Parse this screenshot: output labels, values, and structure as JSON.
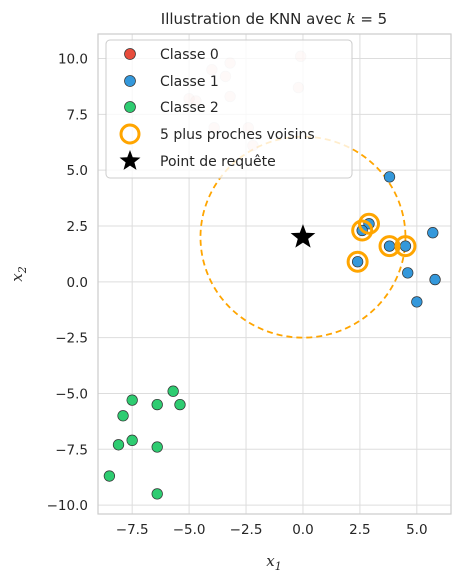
{
  "chart_data": {
    "type": "scatter",
    "title": "Illustration de KNN avec k = 5",
    "title_prefix": "Illustration de KNN avec ",
    "title_var": "k",
    "title_suffix": " = 5",
    "xlabel": "x",
    "xlabel_sub": "1",
    "ylabel": "x",
    "ylabel_sub": "2",
    "xlim": [
      -9.0,
      6.5
    ],
    "ylim": [
      -10.4,
      11.1
    ],
    "xticks": [
      -7.5,
      -5.0,
      -2.5,
      0.0,
      2.5,
      5.0
    ],
    "xtick_labels": [
      "−7.5",
      "−5.0",
      "−2.5",
      "0.0",
      "2.5",
      "5.0"
    ],
    "yticks": [
      -10.0,
      -7.5,
      -5.0,
      -2.5,
      0.0,
      2.5,
      5.0,
      7.5,
      10.0
    ],
    "ytick_labels": [
      "−10.0",
      "−7.5",
      "−5.0",
      "−2.5",
      "0.0",
      "2.5",
      "5.0",
      "7.5",
      "10.0"
    ],
    "grid": true,
    "legend_position": "top-left",
    "series": [
      {
        "name": "Classe 0",
        "color": "#e74c3c",
        "points": [
          [
            -0.1,
            10.1
          ],
          [
            -3.2,
            9.8
          ],
          [
            -4.0,
            9.5
          ],
          [
            -3.4,
            9.2
          ],
          [
            -0.2,
            8.7
          ],
          [
            -3.2,
            8.3
          ],
          [
            -5.0,
            8.2
          ],
          [
            -4.7,
            8.1
          ],
          [
            -2.4,
            6.9
          ],
          [
            -3.9,
            6.9
          ],
          [
            -2.2,
            6.1
          ]
        ]
      },
      {
        "name": "Classe 1",
        "color": "#3498db",
        "points": [
          [
            3.8,
            4.7
          ],
          [
            2.9,
            2.6
          ],
          [
            2.6,
            2.3
          ],
          [
            3.8,
            1.6
          ],
          [
            4.5,
            1.6
          ],
          [
            5.7,
            2.2
          ],
          [
            2.4,
            0.9
          ],
          [
            4.6,
            0.4
          ],
          [
            5.8,
            0.1
          ],
          [
            5.0,
            -0.9
          ]
        ]
      },
      {
        "name": "Classe 2",
        "color": "#2ecc71",
        "points": [
          [
            -7.5,
            -5.3
          ],
          [
            -5.7,
            -4.9
          ],
          [
            -6.4,
            -5.5
          ],
          [
            -5.4,
            -5.5
          ],
          [
            -7.9,
            -6.0
          ],
          [
            -7.5,
            -7.1
          ],
          [
            -8.1,
            -7.3
          ],
          [
            -6.4,
            -7.4
          ],
          [
            -8.5,
            -8.7
          ],
          [
            -6.4,
            -9.5
          ]
        ]
      }
    ],
    "neighbors": {
      "name": "5 plus proches voisins",
      "color": "#ffa500",
      "points": [
        [
          2.9,
          2.6
        ],
        [
          2.6,
          2.3
        ],
        [
          3.8,
          1.6
        ],
        [
          4.5,
          1.6
        ],
        [
          2.4,
          0.9
        ]
      ]
    },
    "query": {
      "name": "Point de requête",
      "color": "#000000",
      "point": [
        0.0,
        2.0
      ]
    },
    "radius_circle": {
      "center": [
        0.0,
        2.0
      ],
      "radius": 4.5,
      "color": "#ffa500"
    }
  }
}
